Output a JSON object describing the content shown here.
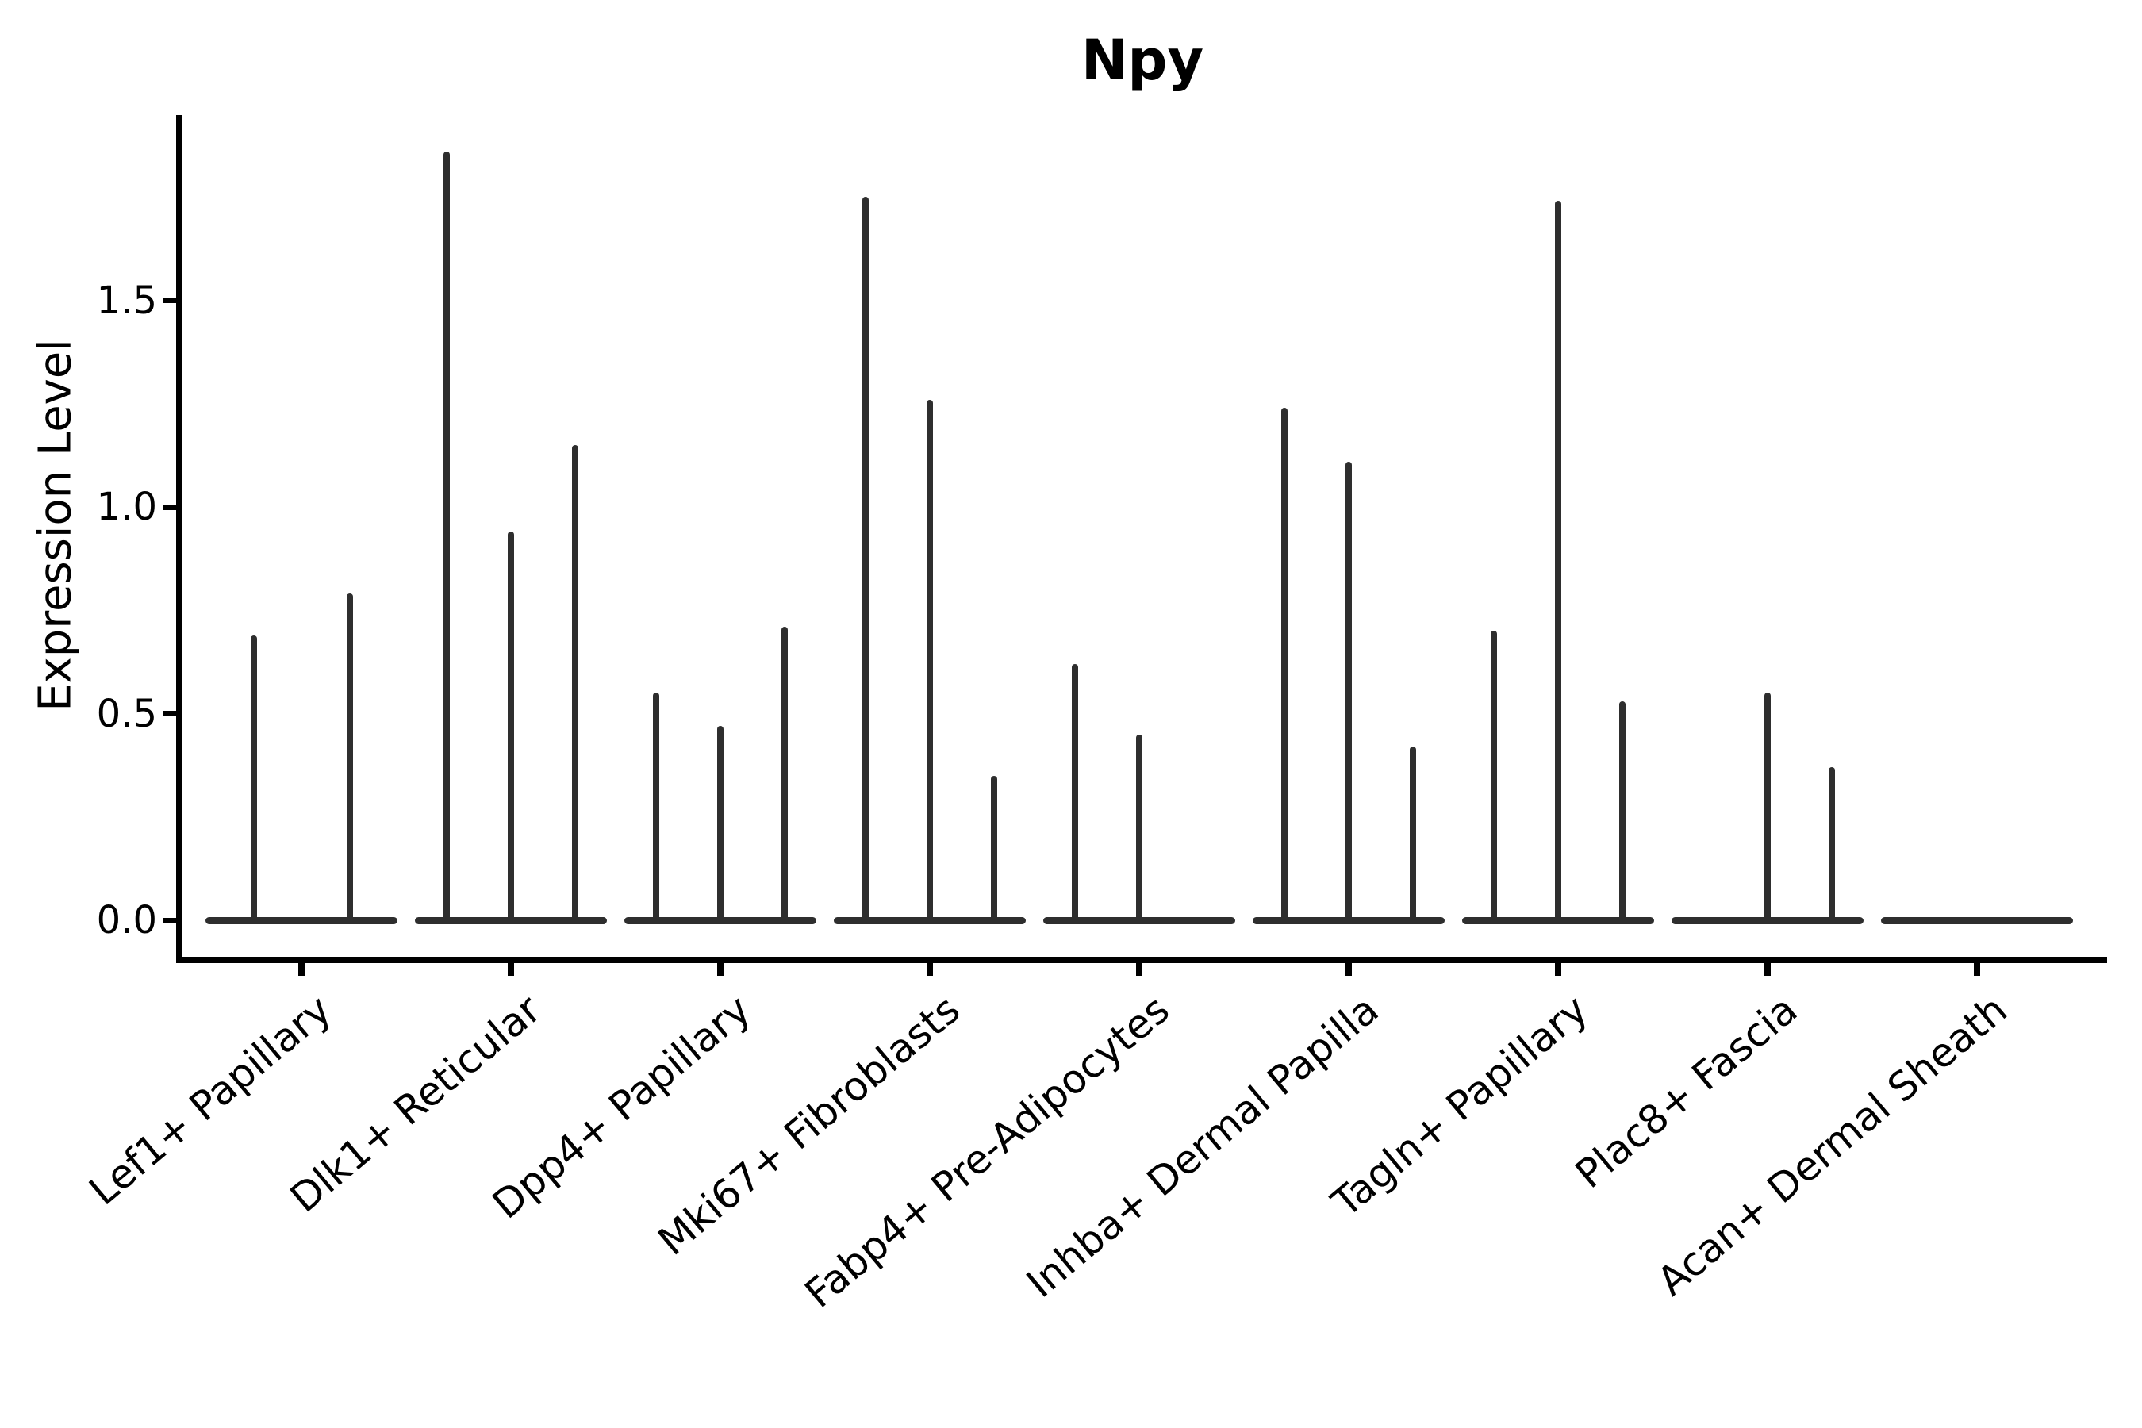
{
  "title": "Npy",
  "y_axis_label": "Expression Level",
  "chart_data": {
    "type": "violin",
    "title": "Npy",
    "xlabel": "",
    "ylabel": "Expression Level",
    "ylim": [
      -0.09,
      1.94
    ],
    "yticks": [
      0.0,
      0.5,
      1.0,
      1.5
    ],
    "ytick_labels": [
      "0.0",
      "0.5",
      "1.0",
      "1.5"
    ],
    "grid": false,
    "legend": "none",
    "x_label_rotation_deg": 40,
    "categories": [
      "Lef1+ Papillary",
      "Dlk1+ Reticular",
      "Dpp4+ Papillary",
      "Mki67+ Fibroblasts",
      "Fabp4+ Pre-Adipocytes",
      "Inhba+ Dermal Papilla",
      "Tagln+ Papillary",
      "Plac8+ Fascia",
      "Acan+ Dermal Sheath"
    ],
    "groups": [
      {
        "category": "Lef1+ Papillary",
        "violin_peaks": [
          0.69,
          0.79
        ]
      },
      {
        "category": "Dlk1+ Reticular",
        "violin_peaks": [
          1.86,
          0.94,
          1.15
        ]
      },
      {
        "category": "Dpp4+ Papillary",
        "violin_peaks": [
          0.55,
          0.47,
          0.71
        ]
      },
      {
        "category": "Mki67+ Fibroblasts",
        "violin_peaks": [
          1.75,
          1.26,
          0.35
        ]
      },
      {
        "category": "Fabp4+ Pre-Adipocytes",
        "violin_peaks": [
          0.62,
          0.45,
          0.0
        ]
      },
      {
        "category": "Inhba+ Dermal Papilla",
        "violin_peaks": [
          1.24,
          1.11,
          0.42
        ]
      },
      {
        "category": "Tagln+ Papillary",
        "violin_peaks": [
          0.7,
          1.74,
          0.53
        ]
      },
      {
        "category": "Plac8+ Fascia",
        "violin_peaks": [
          0.0,
          0.55,
          0.37
        ]
      },
      {
        "category": "Acan+ Dermal Sheath",
        "violin_peaks": [
          0.0,
          0.0,
          0.0
        ]
      }
    ],
    "colors": {
      "violin": "#2e2e2e",
      "spine": "#000000",
      "text": "#000000",
      "background": "#ffffff"
    }
  }
}
